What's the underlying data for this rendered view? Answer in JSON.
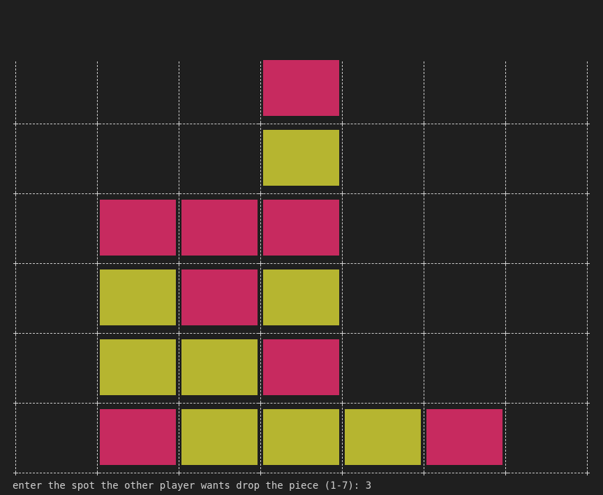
{
  "colors": {
    "background": "#1f1f1f",
    "grid": "#cfcfcf",
    "player_red": "#c72a5f",
    "player_yellow": "#b6b530",
    "text": "#d0d0d0"
  },
  "board": {
    "columns": 7,
    "rows": 6,
    "cells": [
      [
        "",
        "",
        "",
        "R",
        "",
        "",
        ""
      ],
      [
        "",
        "",
        "",
        "Y",
        "",
        "",
        ""
      ],
      [
        "",
        "R",
        "R",
        "R",
        "",
        "",
        ""
      ],
      [
        "",
        "Y",
        "R",
        "Y",
        "",
        "",
        ""
      ],
      [
        "",
        "Y",
        "Y",
        "R",
        "",
        "",
        ""
      ],
      [
        "",
        "R",
        "Y",
        "Y",
        "Y",
        "R",
        ""
      ]
    ]
  },
  "prompt": {
    "text": "enter the spot the other player wants drop the piece (1-7): ",
    "input": "3"
  }
}
